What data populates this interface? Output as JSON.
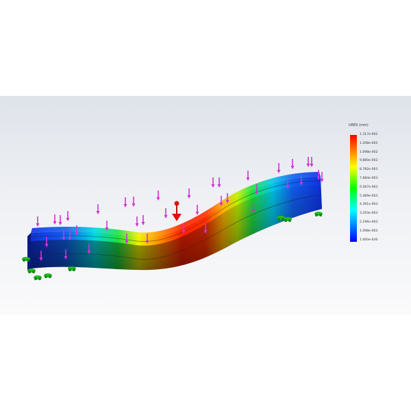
{
  "legend": {
    "title": "URES (mm)",
    "labels": [
      "1.317e-002",
      "1.208e-002",
      "1.098e-002",
      "9.880e-003",
      "8.782e-003",
      "7.684e-003",
      "6.587e-003",
      "5.489e-003",
      "4.391e-003",
      "3.293e-003",
      "2.196e-003",
      "1.098e-003",
      "1.000e-030"
    ],
    "colormap": [
      "#ff0000",
      "#ff8000",
      "#ffff00",
      "#00ff00",
      "#00ffff",
      "#0080ff",
      "#0000ff"
    ]
  },
  "colors": {
    "load_arrows": "#d033d6",
    "fixtures": "#22bb22",
    "remote_load": "#e01010"
  },
  "icons": {
    "loads": "down-arrow-icon",
    "fixtures": "fixed-support-icon",
    "remote_load": "pushpin-icon"
  }
}
